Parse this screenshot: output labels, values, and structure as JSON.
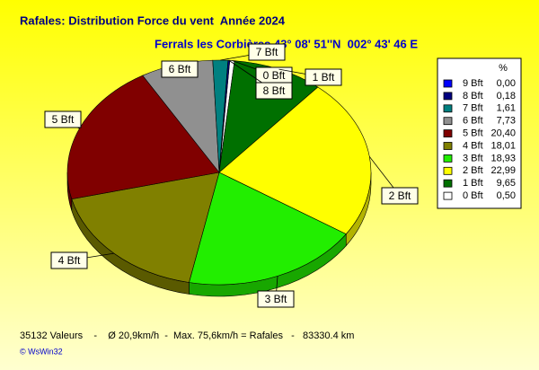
{
  "chart_data": {
    "type": "pie",
    "title": "Rafales: Distribution Force du vent  Année 2024",
    "subtitle": "Ferrals les Corbières 43° 08' 51''N  002° 43' 46 E",
    "legend_header": "%",
    "categories": [
      "0 Bft",
      "1 Bft",
      "2 Bft",
      "3 Bft",
      "4 Bft",
      "5 Bft",
      "6 Bft",
      "7 Bft",
      "8 Bft",
      "9 Bft"
    ],
    "values": [
      0.5,
      9.65,
      22.99,
      18.93,
      18.01,
      20.4,
      7.73,
      1.61,
      0.18,
      0.0
    ],
    "value_labels": [
      "0,50",
      "9,65",
      "22,99",
      "18,93",
      "18,01",
      "20,40",
      "7,73",
      "1,61",
      "0,18",
      "0,00"
    ],
    "colors": [
      "#ffffff",
      "#007000",
      "#ffff00",
      "#22ee00",
      "#808000",
      "#800000",
      "#909090",
      "#008080",
      "#000080",
      "#0000ff"
    ],
    "legend": "right",
    "annotations": [
      "35132 Valeurs    -    Ø 20,9km/h  -  Max. 75,6km/h = Rafales   -   83330.4 km",
      "© WsWin32"
    ]
  }
}
